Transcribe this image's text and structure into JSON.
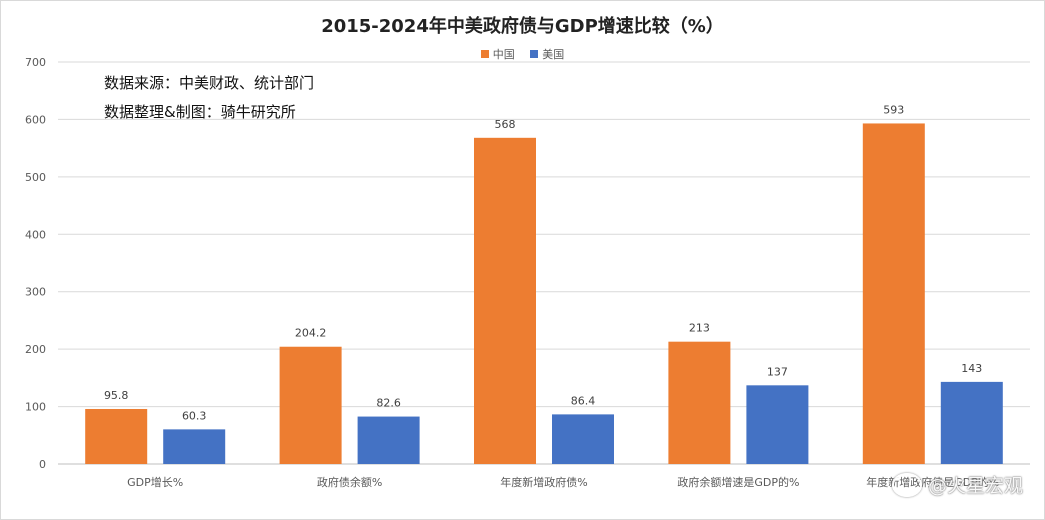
{
  "chart_data": {
    "type": "bar",
    "title": "2015-2024年中美政府债与GDP增速比较（%）",
    "categories": [
      "GDP增长%",
      "政府债余额%",
      "年度新增政府债%",
      "政府余额增速是GDP的%",
      "年度新增政府债是GDP的%"
    ],
    "series": [
      {
        "name": "中国",
        "values": [
          95.8,
          204.2,
          568,
          213,
          593
        ],
        "color": "#ED7D31"
      },
      {
        "name": "美国",
        "values": [
          60.3,
          82.6,
          86.4,
          137,
          143
        ],
        "color": "#4472C4"
      }
    ],
    "value_labels": [
      [
        "95.8",
        "204.2",
        "568",
        "213",
        "593"
      ],
      [
        "60.3",
        "82.6",
        "86.4",
        "137",
        "143"
      ]
    ],
    "ylim": [
      0,
      700
    ],
    "yticks": [
      0,
      100,
      200,
      300,
      400,
      500,
      600,
      700
    ],
    "grid": true,
    "legend_position": "top"
  },
  "notes": {
    "source": "数据来源：中美财政、统计部门",
    "author": "数据整理&制图：骑牛研究所"
  },
  "watermark": {
    "text": "@火星宏观"
  }
}
